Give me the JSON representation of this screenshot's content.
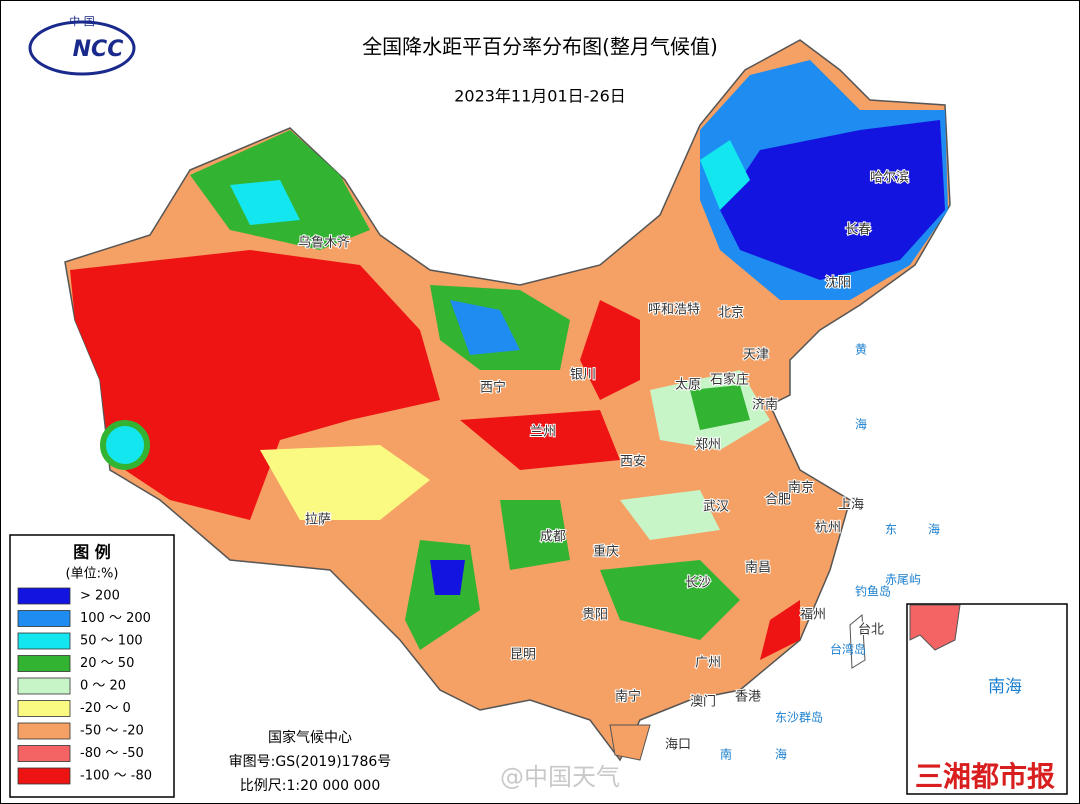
{
  "header": {
    "title": "全国降水距平百分率分布图(整月气候值)",
    "subtitle": "2023年11月01日-26日",
    "logo_top": "中 国",
    "logo_text": "NCC"
  },
  "legend": {
    "title": "图 例",
    "unit": "(单位:%)",
    "items": [
      {
        "label": "> 200",
        "color": "#1414e0"
      },
      {
        "label": "100 ～ 200",
        "color": "#1e8cf0"
      },
      {
        "label": "50 ～ 100",
        "color": "#14e6f0"
      },
      {
        "label": "20 ～ 50",
        "color": "#32b432"
      },
      {
        "label": "0 ～ 20",
        "color": "#c8f5c8"
      },
      {
        "label": "-20 ～ 0",
        "color": "#fafa82"
      },
      {
        "label": "-50 ～ -20",
        "color": "#f5a064"
      },
      {
        "label": "-80 ～ -50",
        "color": "#f56464"
      },
      {
        "label": "-100 ～ -80",
        "color": "#ee1414"
      }
    ]
  },
  "credits": [
    "国家气候中心",
    "审图号:GS(2019)1786号",
    "比例尺:1:20 000 000"
  ],
  "cities": [
    "乌鲁木齐",
    "西宁",
    "兰州",
    "银川",
    "呼和浩特",
    "北京",
    "天津",
    "太原",
    "石家庄",
    "济南",
    "郑州",
    "西安",
    "成都",
    "重庆",
    "武汉",
    "合肥",
    "南京",
    "上海",
    "杭州",
    "南昌",
    "长沙",
    "贵阳",
    "昆明",
    "南宁",
    "广州",
    "香港",
    "澳门",
    "海口",
    "福州",
    "台北",
    "拉萨",
    "哈尔滨",
    "长春",
    "沈阳"
  ],
  "places": [
    "黄",
    "海",
    "东",
    "海",
    "南",
    "海",
    "台湾岛",
    "钓鱼岛",
    "赤尾屿",
    "东沙群岛"
  ],
  "inset": {
    "label": "南海"
  },
  "watermarks": [
    "@中国天气",
    "三湘都市报"
  ]
}
